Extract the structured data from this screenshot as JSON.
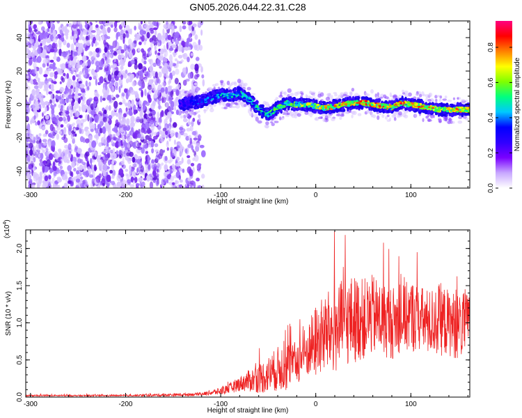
{
  "chart_data": [
    {
      "type": "heatmap",
      "title": "GN05.2026.044.22.31.C28",
      "xlabel": "Height of straight line (km)",
      "ylabel": "Frequency (Hz)",
      "xlim": [
        -305,
        162
      ],
      "ylim": [
        -50,
        50
      ],
      "xticks": [
        -300,
        -200,
        -100,
        0,
        100
      ],
      "yticks": [
        -40,
        -20,
        0,
        20,
        40
      ],
      "noise_region_x": [
        -305,
        -118
      ],
      "signal_track": {
        "x": [
          -143,
          -130,
          -120,
          -110,
          -100,
          -90,
          -80,
          -70,
          -60,
          -50,
          -40,
          -30,
          -20,
          -10,
          0,
          10,
          20,
          30,
          40,
          50,
          60,
          70,
          80,
          90,
          100,
          110,
          120,
          130,
          140,
          150,
          160
        ],
        "frequency": [
          0,
          1,
          2,
          4,
          6,
          5,
          7,
          3,
          -3,
          -6,
          -2,
          1,
          0,
          0,
          -1,
          -2,
          -1,
          0,
          1,
          1,
          0,
          -1,
          -2,
          1,
          0,
          -1,
          -2,
          -3,
          -3,
          -3,
          -3
        ],
        "amplitude": [
          0.3,
          0.35,
          0.4,
          0.45,
          0.5,
          0.5,
          0.55,
          0.55,
          0.55,
          0.55,
          0.6,
          0.6,
          0.65,
          0.7,
          0.7,
          0.75,
          0.8,
          0.8,
          0.85,
          0.85,
          0.85,
          0.85,
          0.85,
          0.85,
          0.8,
          0.8,
          0.8,
          0.8,
          0.8,
          0.8,
          0.8
        ]
      },
      "colorbar": {
        "label": "Normalized spectral amplitude",
        "range": [
          0.0,
          0.95
        ],
        "ticks": [
          "0.0",
          "0.2",
          "0.4",
          "0.6",
          "0.8"
        ],
        "stops": [
          "#ffffff",
          "#c8a8ff",
          "#7a00ff",
          "#3000ff",
          "#0000ff",
          "#00c8ff",
          "#00ff80",
          "#80ff00",
          "#ffff00",
          "#ff8000",
          "#ff0000",
          "#ff0080"
        ]
      }
    },
    {
      "type": "line",
      "xlabel": "Height of straight line (km)",
      "ylabel": "SNR (10 * v/v)",
      "exponent_label": "(x10",
      "exponent_power": "4",
      "exponent_close": ")",
      "xlim": [
        -305,
        162
      ],
      "ylim": [
        0,
        2.25
      ],
      "xticks": [
        -300,
        -200,
        -100,
        0,
        100
      ],
      "yticks": [
        "0.0",
        "0.5",
        "1.0",
        "1.5",
        "2.0"
      ],
      "color": "#ee2222",
      "series": [
        {
          "name": "SNR",
          "x": [
            -305,
            -250,
            -200,
            -150,
            -120,
            -100,
            -90,
            -80,
            -70,
            -60,
            -50,
            -40,
            -30,
            -25,
            -20,
            -15,
            -10,
            0,
            10,
            20,
            30,
            40,
            50,
            60,
            70,
            80,
            90,
            100,
            110,
            120,
            130,
            140,
            150,
            162
          ],
          "mean": [
            0.02,
            0.02,
            0.02,
            0.03,
            0.04,
            0.08,
            0.12,
            0.18,
            0.22,
            0.25,
            0.3,
            0.38,
            0.42,
            0.45,
            0.48,
            0.55,
            0.6,
            0.75,
            0.85,
            0.9,
            1.0,
            1.05,
            1.05,
            1.1,
            1.05,
            1.0,
            1.05,
            1.1,
            1.05,
            1.0,
            1.05,
            1.0,
            0.95,
            1.0
          ],
          "spread": [
            0.01,
            0.01,
            0.01,
            0.02,
            0.02,
            0.05,
            0.07,
            0.1,
            0.15,
            0.2,
            0.25,
            0.3,
            0.35,
            0.25,
            0.3,
            0.35,
            0.35,
            0.5,
            0.55,
            0.6,
            0.6,
            0.6,
            0.55,
            0.55,
            0.5,
            0.5,
            0.45,
            0.5,
            0.45,
            0.45,
            0.5,
            0.45,
            0.45,
            0.4
          ]
        }
      ]
    }
  ]
}
